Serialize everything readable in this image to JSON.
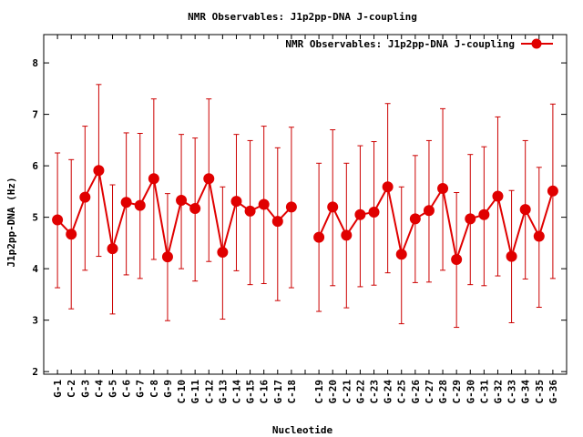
{
  "chart_data": {
    "type": "line",
    "title": "NMR Observables: J1p2pp-DNA J-coupling",
    "xlabel": "Nucleotide",
    "ylabel": "J1p2pp-DNA (Hz)",
    "ylim": [
      1.95,
      8.55
    ],
    "yticks": [
      "2",
      "3",
      "4",
      "5",
      "6",
      "7",
      "8"
    ],
    "legend": {
      "position": "top-right",
      "label": "NMR Observables: J1p2pp-DNA J-coupling"
    },
    "line_color": "#e00000",
    "errorbar_color": "#cc0000",
    "categories": [
      "G-1",
      "C-2",
      "G-3",
      "C-4",
      "G-5",
      "C-6",
      "G-7",
      "C-8",
      "G-9",
      "C-10",
      "G-11",
      "C-12",
      "G-13",
      "C-14",
      "G-15",
      "C-16",
      "G-17",
      "C-18",
      "",
      "C-19",
      "G-20",
      "C-21",
      "G-22",
      "C-23",
      "G-24",
      "C-25",
      "G-26",
      "C-27",
      "G-28",
      "C-29",
      "G-30",
      "C-31",
      "G-32",
      "C-33",
      "G-34",
      "C-35",
      "G-36"
    ],
    "series": [
      {
        "values": [
          4.95,
          4.67,
          5.39,
          5.91,
          4.39,
          5.29,
          5.23,
          5.75,
          4.23,
          5.33,
          5.17,
          5.75,
          4.32,
          5.31,
          5.12,
          5.25,
          4.92,
          5.2,
          null,
          4.61,
          5.2,
          4.65,
          5.05,
          5.1,
          5.59,
          4.28,
          4.97,
          5.13,
          5.56,
          4.18,
          4.97,
          5.05,
          5.41,
          4.24,
          5.15,
          4.63,
          5.51
        ],
        "lower": [
          3.63,
          3.22,
          3.97,
          4.24,
          3.12,
          3.88,
          3.81,
          4.18,
          2.99,
          4.0,
          3.76,
          4.14,
          3.02,
          3.96,
          3.69,
          3.71,
          3.38,
          3.63,
          null,
          3.17,
          3.67,
          3.24,
          3.65,
          3.68,
          3.92,
          2.93,
          3.73,
          3.74,
          3.97,
          2.86,
          3.69,
          3.67,
          3.86,
          2.95,
          3.8,
          3.25,
          3.81
        ],
        "upper": [
          6.25,
          6.12,
          6.77,
          7.58,
          5.63,
          6.64,
          6.63,
          7.3,
          5.46,
          6.61,
          6.54,
          7.3,
          5.59,
          6.61,
          6.49,
          6.77,
          6.35,
          6.75,
          null,
          6.05,
          6.7,
          6.05,
          6.39,
          6.47,
          7.21,
          5.59,
          6.2,
          6.49,
          7.11,
          5.48,
          6.22,
          6.37,
          6.95,
          5.52,
          6.49,
          5.97,
          7.2
        ]
      }
    ]
  }
}
